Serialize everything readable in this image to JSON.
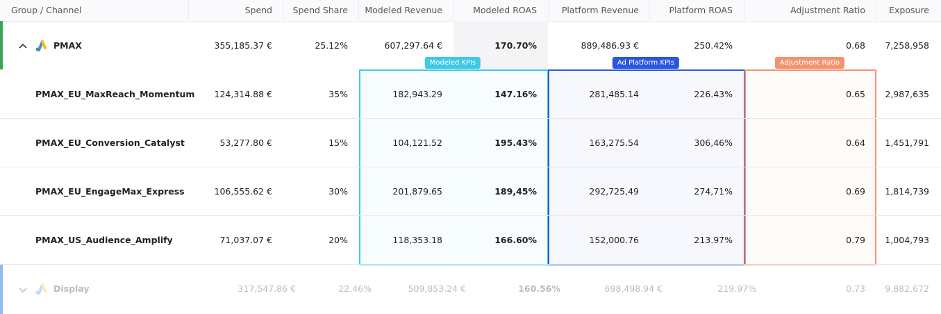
{
  "header": {
    "columns": [
      "Group / Channel",
      "Spend",
      "Spend Share",
      "Modeled Revenue",
      "Modeled ROAS",
      "Platform Revenue",
      "Platform ROAS",
      "Adjustment Ratio",
      "Exposure"
    ]
  },
  "groups": [
    {
      "name": "PMAX",
      "values": [
        "355,185.37 €",
        "25.12%",
        "607,297.64 €",
        "170.70%",
        "889,486.93 €",
        "250.42%",
        "0.68",
        "7,258,958"
      ],
      "channels": [
        {
          "name": "PMAX_EU_MaxReach_Momentum",
          "values": [
            "124,314.88 €",
            "35%",
            "182,943.29",
            "147.16%",
            "281,485.14",
            "226.43%",
            "0.65",
            "2,987,635"
          ]
        },
        {
          "name": "PMAX_EU_Conversion_Catalyst",
          "values": [
            "53,277.80 €",
            "15%",
            "104,121.52",
            "195.43%",
            "163,275.54",
            "306,46%",
            "0.64",
            "1,451,791"
          ]
        },
        {
          "name": "PMAX_EU_EngageMax_Express",
          "values": [
            "106,555.62 €",
            "30%",
            "201,879.65",
            "189,45%",
            "292,725,49",
            "274,71%",
            "0.69",
            "1,814,739"
          ]
        },
        {
          "name": "PMAX_US_Audience_Amplify",
          "values": [
            "71,037.07 €",
            "20%",
            "118,353.18",
            "166.60%",
            "152,000.76",
            "213.97%",
            "0.79",
            "1,004,793"
          ]
        }
      ]
    },
    {
      "name": "Display",
      "values": [
        "317,547.86 €",
        "22.46%",
        "509,853.24 €",
        "160.56%",
        "698,498.94 €",
        "219.97%",
        "0.73",
        "9,882,672"
      ]
    }
  ],
  "highlights": [
    "Modeled KPIs",
    "Ad Platform KPIs",
    "Adjustment Ratio"
  ]
}
